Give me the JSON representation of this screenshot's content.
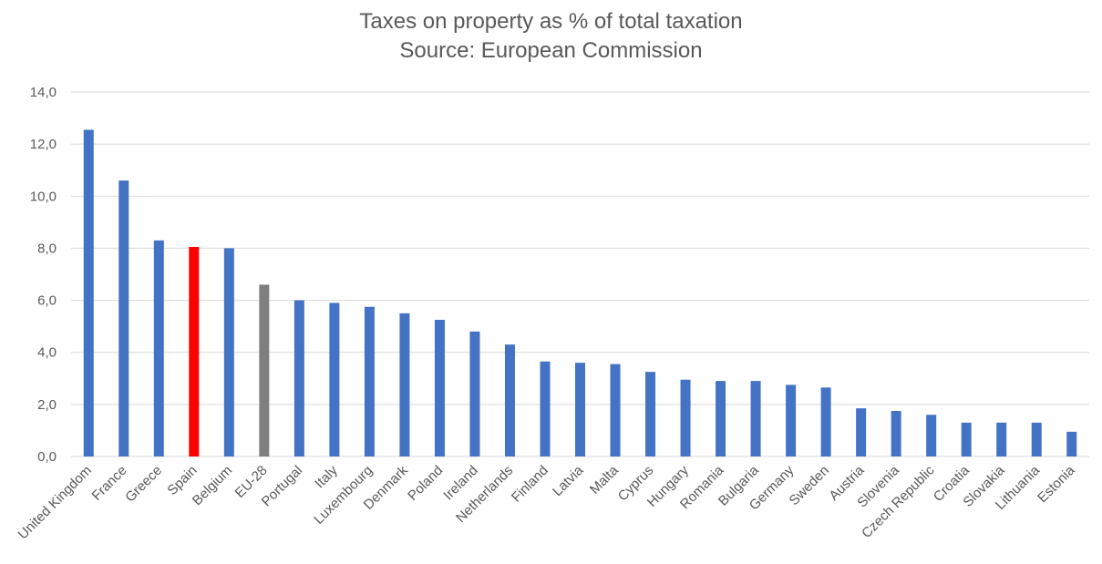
{
  "chart_data": {
    "type": "bar",
    "title": "Taxes on property as % of total taxation",
    "subtitle": "Source: European Commission",
    "xlabel": "",
    "ylabel": "",
    "ylim": [
      0,
      14
    ],
    "yticks": [
      "0,0",
      "2,0",
      "4,0",
      "6,0",
      "8,0",
      "10,0",
      "12,0",
      "14,0"
    ],
    "grid": true,
    "legend": "none",
    "categories": [
      "United Kingdom",
      "France",
      "Greece",
      "Spain",
      "Belgium",
      "EU-28",
      "Portugal",
      "Italy",
      "Luxembourg",
      "Denmark",
      "Poland",
      "Ireland",
      "Netherlands",
      "Finland",
      "Latvia",
      "Malta",
      "Cyprus",
      "Hungary",
      "Romania",
      "Bulgaria",
      "Germany",
      "Sweden",
      "Austria",
      "Slovenia",
      "Czech Republic",
      "Croatia",
      "Slovakia",
      "Lithuania",
      "Estonia"
    ],
    "values": [
      12.55,
      10.6,
      8.3,
      8.05,
      8.0,
      6.6,
      6.0,
      5.9,
      5.75,
      5.5,
      5.25,
      4.8,
      4.3,
      3.65,
      3.6,
      3.55,
      3.25,
      2.95,
      2.9,
      2.9,
      2.75,
      2.65,
      1.85,
      1.75,
      1.6,
      1.3,
      1.3,
      1.3,
      0.95
    ],
    "colors": {
      "default": "#4472c4",
      "Spain": "#ff0000",
      "EU-28": "#7f7f7f",
      "grid": "#d9d9d9",
      "text": "#595959"
    }
  }
}
